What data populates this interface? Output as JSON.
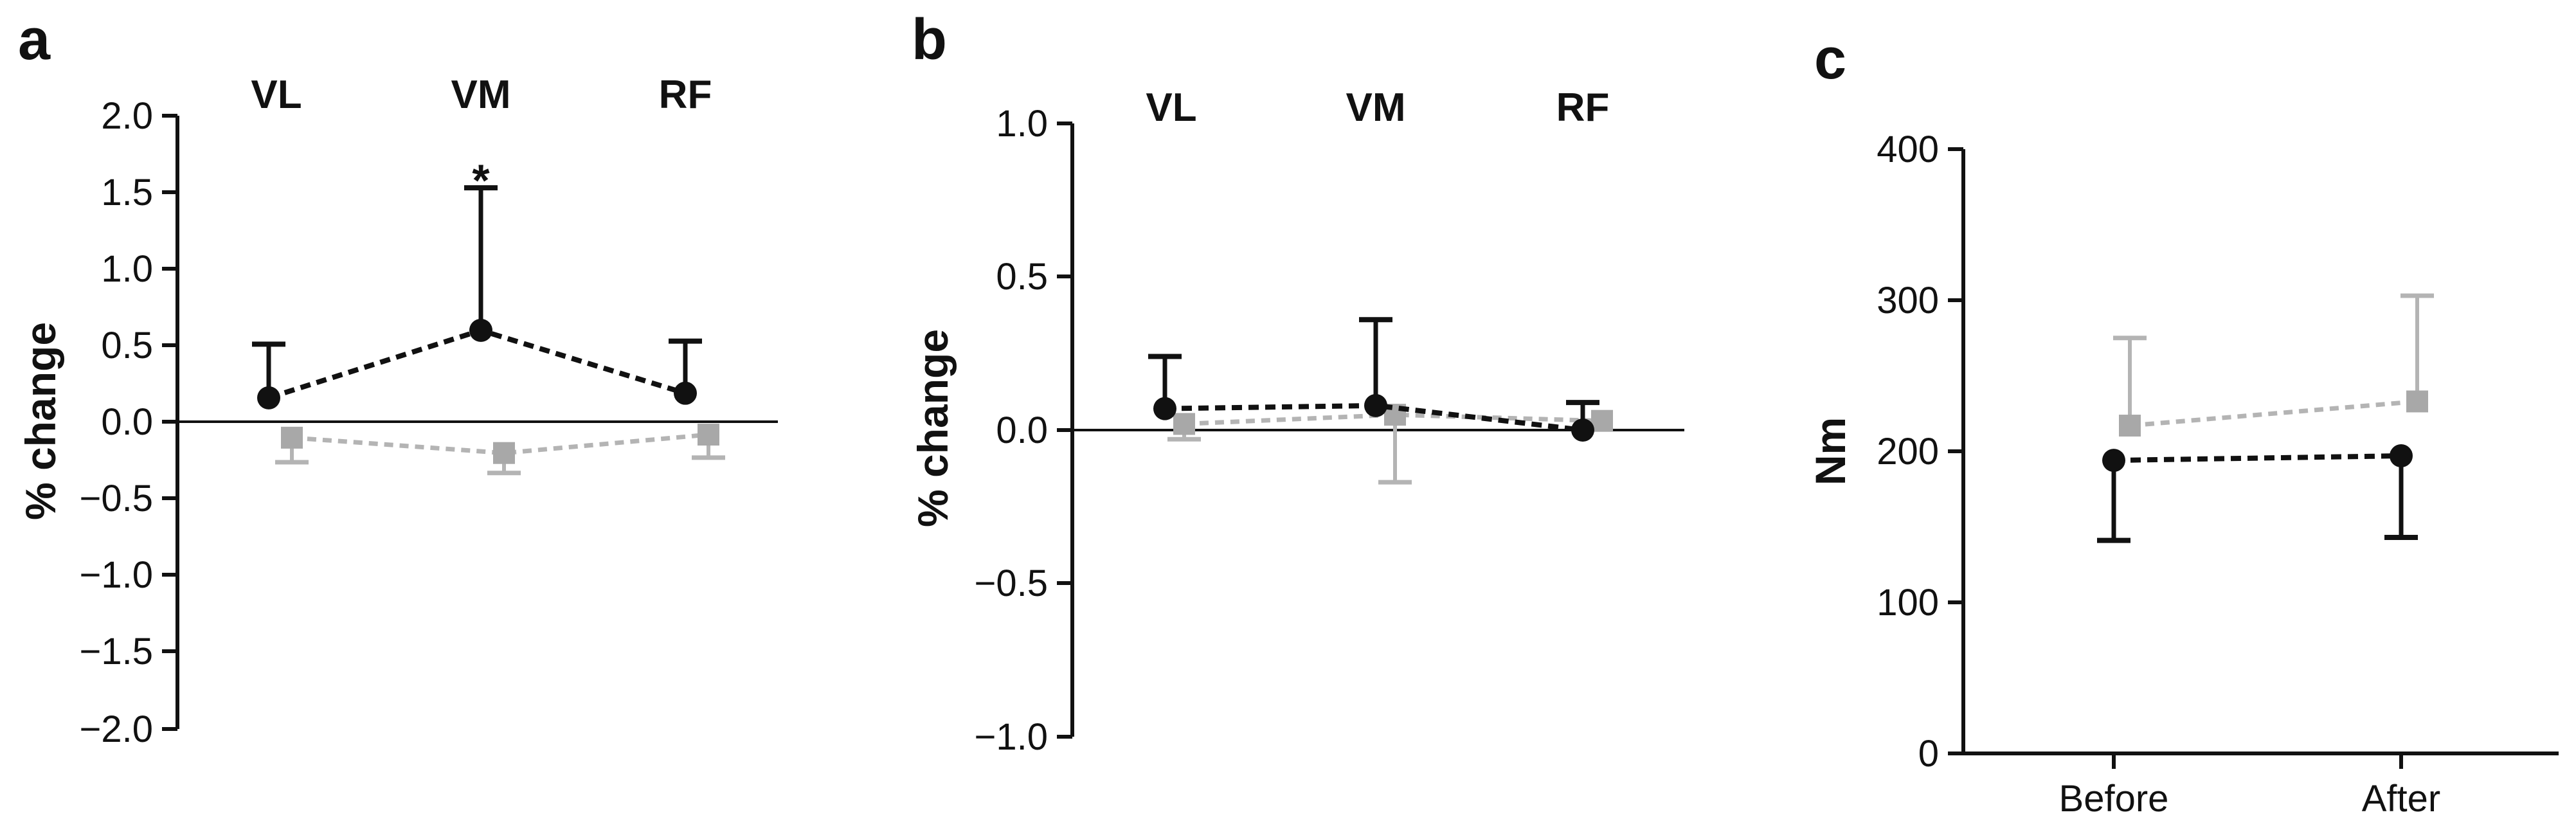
{
  "colors": {
    "black_series": "#111111",
    "gray_series": "#b4b4b4",
    "gray_marker": "#a8a8a8"
  },
  "chart_data": [
    {
      "panel": "a",
      "type": "line",
      "categories": [
        "VL",
        "VM",
        "RF"
      ],
      "ylabel": "% change",
      "ylim": [
        -2.0,
        2.0
      ],
      "yticks": [
        2.0,
        1.5,
        1.0,
        0.5,
        0.0,
        -0.5,
        -1.0,
        -1.5,
        -2.0
      ],
      "yticklabels": [
        "2.0",
        "1.5",
        "1.0",
        "0.5",
        "0.0",
        "−0.5",
        "−1.0",
        "−1.5",
        "−2.0"
      ],
      "series": [
        {
          "values": [
            0.16,
            0.6,
            0.19
          ],
          "err_up": [
            0.51,
            1.53,
            0.53
          ],
          "err_down": [
            null,
            null,
            null
          ],
          "marker": "circle",
          "color": "#111111"
        },
        {
          "values": [
            -0.1,
            -0.2,
            -0.08
          ],
          "err_up": [
            null,
            null,
            null
          ],
          "err_down": [
            -0.26,
            -0.33,
            -0.23
          ],
          "marker": "square",
          "color": "#b4b4b4"
        }
      ],
      "annotations": [
        {
          "category": "VM",
          "text": "*",
          "y": 1.62
        }
      ]
    },
    {
      "panel": "b",
      "type": "line",
      "categories": [
        "VL",
        "VM",
        "RF"
      ],
      "ylabel": "% change",
      "ylim": [
        -1.0,
        1.0
      ],
      "yticks": [
        1.0,
        0.5,
        0.0,
        -0.5,
        -1.0
      ],
      "yticklabels": [
        "1.0",
        "0.5",
        "0.0",
        "−0.5",
        "−1.0"
      ],
      "series": [
        {
          "values": [
            0.07,
            0.08,
            0.0
          ],
          "err_up": [
            0.24,
            0.36,
            0.09
          ],
          "err_down": [
            null,
            null,
            null
          ],
          "marker": "circle",
          "color": "#111111"
        },
        {
          "values": [
            0.02,
            0.05,
            0.03
          ],
          "err_up": [
            null,
            null,
            null
          ],
          "err_down": [
            -0.03,
            -0.17,
            null
          ],
          "marker": "square",
          "color": "#b4b4b4"
        }
      ],
      "annotations": []
    },
    {
      "panel": "c",
      "type": "line",
      "categories": [
        "Before",
        "After"
      ],
      "ylabel": "Nm",
      "ylim": [
        0,
        400
      ],
      "yticks": [
        400,
        300,
        200,
        100,
        0
      ],
      "yticklabels": [
        "400",
        "300",
        "200",
        "100",
        "0"
      ],
      "series": [
        {
          "values": [
            194,
            197
          ],
          "err_up": [
            null,
            null
          ],
          "err_down": [
            141,
            143
          ],
          "marker": "circle",
          "color": "#111111"
        },
        {
          "values": [
            217,
            233
          ],
          "err_up": [
            275,
            303
          ],
          "err_down": [
            null,
            null
          ],
          "marker": "square",
          "color": "#b4b4b4"
        }
      ],
      "annotations": []
    }
  ]
}
